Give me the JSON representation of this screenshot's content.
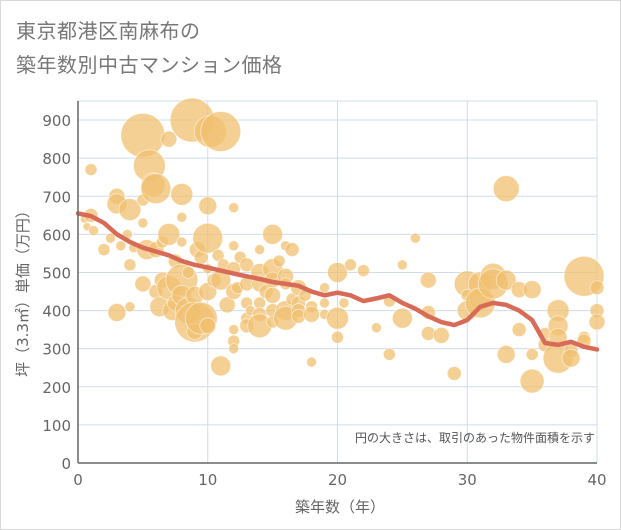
{
  "title_line1": "東京都港区南麻布の",
  "title_line2": "築年数別中古マンション価格",
  "chart_data": {
    "type": "scatter",
    "xlabel": "築年数（年）",
    "ylabel": "坪（3.3㎡）単価（万円）",
    "xlim": [
      0,
      40
    ],
    "ylim": [
      0,
      950
    ],
    "x_ticks": [
      "0",
      "10",
      "20",
      "30",
      "40"
    ],
    "y_ticks": [
      "0",
      "100",
      "200",
      "300",
      "400",
      "500",
      "600",
      "700",
      "800",
      "900"
    ],
    "grid": true,
    "note": "円の大きさは、取引のあった物件面積を示す",
    "colors": {
      "bubble": "#f0c070",
      "line": "#d86b57",
      "grid": "#cfdcea",
      "axis": "#666666"
    },
    "bubbles": [
      [
        0.5,
        640,
        4
      ],
      [
        0.7,
        620,
        4
      ],
      [
        1,
        770,
        6
      ],
      [
        1,
        650,
        7
      ],
      [
        1.2,
        610,
        5
      ],
      [
        2,
        560,
        6
      ],
      [
        2.5,
        590,
        5
      ],
      [
        3,
        700,
        8
      ],
      [
        3,
        680,
        10
      ],
      [
        3,
        395,
        9
      ],
      [
        3.3,
        570,
        5
      ],
      [
        3.8,
        600,
        5
      ],
      [
        4,
        665,
        11
      ],
      [
        4,
        520,
        6
      ],
      [
        4,
        410,
        5
      ],
      [
        4.3,
        565,
        5
      ],
      [
        5,
        860,
        22
      ],
      [
        5,
        690,
        6
      ],
      [
        5,
        630,
        5
      ],
      [
        5,
        470,
        8
      ],
      [
        5.3,
        560,
        10
      ],
      [
        5.5,
        780,
        16
      ],
      [
        5.8,
        730,
        12
      ],
      [
        6,
        720,
        15
      ],
      [
        6,
        560,
        8
      ],
      [
        6,
        450,
        7
      ],
      [
        6.3,
        410,
        10
      ],
      [
        6.5,
        580,
        6
      ],
      [
        6.5,
        480,
        8
      ],
      [
        7,
        850,
        8
      ],
      [
        7,
        600,
        11
      ],
      [
        7,
        460,
        12
      ],
      [
        7.3,
        400,
        10
      ],
      [
        7.5,
        530,
        7
      ],
      [
        7.5,
        420,
        8
      ],
      [
        8,
        705,
        11
      ],
      [
        8,
        645,
        5
      ],
      [
        8,
        580,
        5
      ],
      [
        8,
        480,
        16
      ],
      [
        8,
        440,
        10
      ],
      [
        8.5,
        400,
        13
      ],
      [
        8.5,
        500,
        6
      ],
      [
        8.8,
        900,
        22
      ],
      [
        9,
        440,
        9
      ],
      [
        9,
        370,
        20
      ],
      [
        9,
        345,
        8
      ],
      [
        9.2,
        560,
        8
      ],
      [
        9.5,
        540,
        7
      ],
      [
        9.5,
        380,
        16
      ],
      [
        10,
        675,
        9
      ],
      [
        10,
        590,
        15
      ],
      [
        10,
        510,
        5
      ],
      [
        10,
        450,
        9
      ],
      [
        10,
        360,
        8
      ],
      [
        10.2,
        870,
        16
      ],
      [
        10.5,
        480,
        7
      ],
      [
        10.8,
        545,
        6
      ],
      [
        11,
        870,
        20
      ],
      [
        11,
        480,
        10
      ],
      [
        11,
        255,
        10
      ],
      [
        11.2,
        520,
        6
      ],
      [
        11.5,
        415,
        8
      ],
      [
        12,
        670,
        5
      ],
      [
        12,
        570,
        5
      ],
      [
        12,
        510,
        7
      ],
      [
        12,
        450,
        8
      ],
      [
        12,
        350,
        5
      ],
      [
        12,
        320,
        6
      ],
      [
        12,
        300,
        5
      ],
      [
        12.3,
        460,
        6
      ],
      [
        12.5,
        540,
        6
      ],
      [
        13,
        520,
        7
      ],
      [
        13,
        470,
        7
      ],
      [
        13,
        420,
        6
      ],
      [
        13,
        380,
        6
      ],
      [
        13,
        360,
        7
      ],
      [
        13.3,
        400,
        5
      ],
      [
        14,
        560,
        5
      ],
      [
        14,
        500,
        9
      ],
      [
        14,
        470,
        8
      ],
      [
        14,
        420,
        6
      ],
      [
        14,
        390,
        7
      ],
      [
        14,
        360,
        12
      ],
      [
        14.5,
        450,
        7
      ],
      [
        15,
        600,
        10
      ],
      [
        15,
        510,
        10
      ],
      [
        15,
        480,
        8
      ],
      [
        15,
        440,
        8
      ],
      [
        15,
        400,
        7
      ],
      [
        15,
        370,
        6
      ],
      [
        15.5,
        530,
        6
      ],
      [
        16,
        570,
        5
      ],
      [
        16,
        490,
        8
      ],
      [
        16,
        470,
        6
      ],
      [
        16,
        400,
        10
      ],
      [
        16,
        380,
        12
      ],
      [
        16.5,
        560,
        7
      ],
      [
        16.5,
        430,
        6
      ],
      [
        17,
        460,
        8
      ],
      [
        17,
        420,
        7
      ],
      [
        17,
        400,
        7
      ],
      [
        17,
        385,
        7
      ],
      [
        17.5,
        440,
        6
      ],
      [
        18,
        410,
        6
      ],
      [
        18,
        390,
        8
      ],
      [
        18,
        265,
        5
      ],
      [
        19,
        460,
        5
      ],
      [
        19,
        420,
        5
      ],
      [
        19,
        390,
        5
      ],
      [
        20,
        500,
        10
      ],
      [
        20,
        380,
        11
      ],
      [
        20,
        330,
        6
      ],
      [
        20.5,
        420,
        5
      ],
      [
        21,
        520,
        6
      ],
      [
        22,
        505,
        6
      ],
      [
        23,
        355,
        5
      ],
      [
        24,
        425,
        6
      ],
      [
        24,
        285,
        6
      ],
      [
        25,
        520,
        5
      ],
      [
        25,
        380,
        10
      ],
      [
        26,
        590,
        5
      ],
      [
        27,
        480,
        8
      ],
      [
        27,
        395,
        7
      ],
      [
        27,
        340,
        7
      ],
      [
        28,
        335,
        8
      ],
      [
        29,
        235,
        7
      ],
      [
        30,
        470,
        13
      ],
      [
        30,
        440,
        6
      ],
      [
        30,
        400,
        10
      ],
      [
        31,
        470,
        12
      ],
      [
        31,
        430,
        11
      ],
      [
        31,
        420,
        15
      ],
      [
        32,
        490,
        13
      ],
      [
        32,
        470,
        15
      ],
      [
        33,
        720,
        13
      ],
      [
        33,
        480,
        10
      ],
      [
        33,
        285,
        9
      ],
      [
        34,
        455,
        8
      ],
      [
        34,
        350,
        7
      ],
      [
        35,
        455,
        9
      ],
      [
        35,
        285,
        6
      ],
      [
        35,
        215,
        12
      ],
      [
        36,
        340,
        6
      ],
      [
        36,
        310,
        7
      ],
      [
        37,
        400,
        11
      ],
      [
        37,
        360,
        10
      ],
      [
        37,
        330,
        9
      ],
      [
        37,
        275,
        15
      ],
      [
        38,
        295,
        7
      ],
      [
        38,
        275,
        9
      ],
      [
        39,
        490,
        20
      ],
      [
        39,
        330,
        6
      ],
      [
        39,
        320,
        7
      ],
      [
        40,
        460,
        7
      ],
      [
        40,
        400,
        7
      ],
      [
        40,
        370,
        8
      ]
    ],
    "line": {
      "x": [
        0,
        1,
        2,
        3,
        4,
        5,
        6,
        7,
        8,
        9,
        10,
        11,
        12,
        13,
        14,
        15,
        16,
        17,
        18,
        19,
        20,
        21,
        22,
        23,
        24,
        25,
        26,
        27,
        28,
        29,
        30,
        31,
        32,
        33,
        34,
        35,
        36,
        37,
        38,
        39,
        40
      ],
      "y": [
        655,
        648,
        630,
        600,
        580,
        565,
        555,
        545,
        530,
        520,
        513,
        505,
        497,
        490,
        483,
        475,
        470,
        465,
        450,
        440,
        447,
        440,
        425,
        432,
        440,
        420,
        405,
        385,
        370,
        362,
        375,
        410,
        420,
        415,
        400,
        375,
        315,
        310,
        318,
        305,
        298
      ]
    }
  }
}
